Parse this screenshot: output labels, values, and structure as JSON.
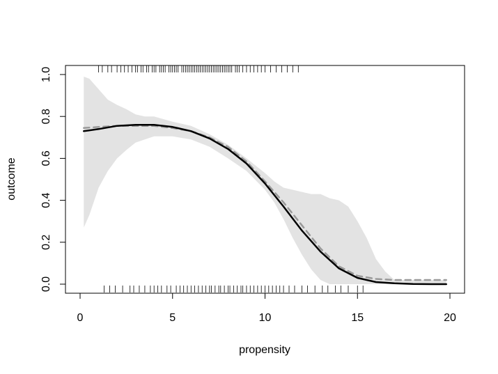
{
  "chart_data": {
    "type": "line",
    "title": "",
    "xlabel": "propensity",
    "ylabel": "outcome",
    "xlim": [
      0,
      20
    ],
    "ylim": [
      0,
      1
    ],
    "x_ticks": [
      0,
      5,
      10,
      15,
      20
    ],
    "x_tick_labels": [
      "0",
      "5",
      "10",
      "15",
      "20"
    ],
    "y_ticks": [
      0,
      0.2,
      0.4,
      0.6,
      0.8,
      1.0
    ],
    "y_tick_labels": [
      "0.0",
      "0.2",
      "0.4",
      "0.6",
      "0.8",
      "1.0"
    ],
    "grid": false,
    "legend": "none",
    "series": [
      {
        "style": "solid",
        "color": "#000000",
        "x": [
          0.2,
          1,
          2,
          3,
          4,
          5,
          6,
          7,
          8,
          9,
          10,
          11,
          12,
          13,
          14,
          15,
          16,
          17,
          18,
          19,
          19.8
        ],
        "y": [
          0.73,
          0.74,
          0.755,
          0.76,
          0.76,
          0.75,
          0.73,
          0.695,
          0.645,
          0.575,
          0.48,
          0.37,
          0.255,
          0.155,
          0.075,
          0.03,
          0.01,
          0.004,
          0.001,
          0.0,
          0.0
        ]
      },
      {
        "style": "dashed",
        "color": "#999999",
        "x": [
          0.2,
          1,
          2,
          3,
          4,
          5,
          6,
          7,
          8,
          9,
          10,
          11,
          12,
          13,
          14,
          15,
          16,
          17,
          18,
          19,
          19.8
        ],
        "y": [
          0.745,
          0.75,
          0.755,
          0.755,
          0.755,
          0.745,
          0.73,
          0.7,
          0.655,
          0.585,
          0.49,
          0.39,
          0.28,
          0.17,
          0.085,
          0.04,
          0.025,
          0.02,
          0.02,
          0.02,
          0.02
        ]
      }
    ],
    "confidence_band": {
      "color": "#e3e3e3",
      "x": [
        0.2,
        0.5,
        1,
        1.5,
        2,
        2.5,
        3,
        3.5,
        4,
        5,
        6,
        7,
        8,
        9,
        10,
        10.5,
        11,
        11.5,
        12,
        12.5,
        13,
        13.5,
        14,
        14.5,
        15,
        15.5,
        16,
        16.5,
        17,
        18,
        19,
        19.8
      ],
      "upper": [
        0.99,
        0.98,
        0.93,
        0.88,
        0.855,
        0.835,
        0.81,
        0.8,
        0.8,
        0.775,
        0.755,
        0.715,
        0.665,
        0.6,
        0.53,
        0.49,
        0.46,
        0.45,
        0.44,
        0.43,
        0.43,
        0.41,
        0.4,
        0.37,
        0.3,
        0.22,
        0.12,
        0.06,
        0.02,
        0.02,
        0.02,
        0.02
      ],
      "lower": [
        0.27,
        0.33,
        0.46,
        0.54,
        0.6,
        0.64,
        0.675,
        0.69,
        0.705,
        0.705,
        0.69,
        0.655,
        0.6,
        0.54,
        0.45,
        0.39,
        0.31,
        0.22,
        0.14,
        0.07,
        0.02,
        0.0,
        0.0,
        0.0,
        0.0,
        0.0,
        0.0,
        0.0,
        0.0,
        0.0,
        0.0,
        0.0
      ]
    },
    "rug_top": [
      1.0,
      1.2,
      1.5,
      1.7,
      2.0,
      2.2,
      2.4,
      2.6,
      2.8,
      3.0,
      3.1,
      3.3,
      3.4,
      3.6,
      3.7,
      3.9,
      4.0,
      4.1,
      4.3,
      4.4,
      4.5,
      4.6,
      4.8,
      4.9,
      5.0,
      5.1,
      5.2,
      5.3,
      5.5,
      5.6,
      5.7,
      5.8,
      5.9,
      6.0,
      6.1,
      6.2,
      6.3,
      6.4,
      6.5,
      6.6,
      6.7,
      6.8,
      6.9,
      7.0,
      7.1,
      7.2,
      7.3,
      7.4,
      7.5,
      7.6,
      7.7,
      7.8,
      7.9,
      8.0,
      8.1,
      8.2,
      8.4,
      8.5,
      8.6,
      8.8,
      9.0,
      9.2,
      9.4,
      9.6,
      9.8,
      10.0,
      10.3,
      10.6,
      10.9,
      11.2,
      11.5,
      11.8
    ],
    "rug_bottom": [
      1.3,
      1.6,
      1.9,
      2.3,
      2.7,
      2.9,
      3.2,
      3.5,
      3.8,
      4.0,
      4.2,
      4.4,
      4.7,
      4.9,
      5.2,
      5.4,
      5.6,
      5.8,
      6.0,
      6.2,
      6.4,
      6.6,
      6.8,
      7.0,
      7.1,
      7.3,
      7.5,
      7.6,
      7.8,
      8.0,
      8.1,
      8.3,
      8.5,
      8.7,
      8.8,
      9.0,
      9.2,
      9.4,
      9.6,
      9.8,
      10.0,
      10.2,
      10.4,
      10.6,
      10.8,
      11.0,
      11.3,
      11.6,
      12.0,
      12.3,
      12.7,
      13.1,
      13.4,
      13.8,
      14.1,
      14.5,
      15.0,
      15.3
    ]
  }
}
